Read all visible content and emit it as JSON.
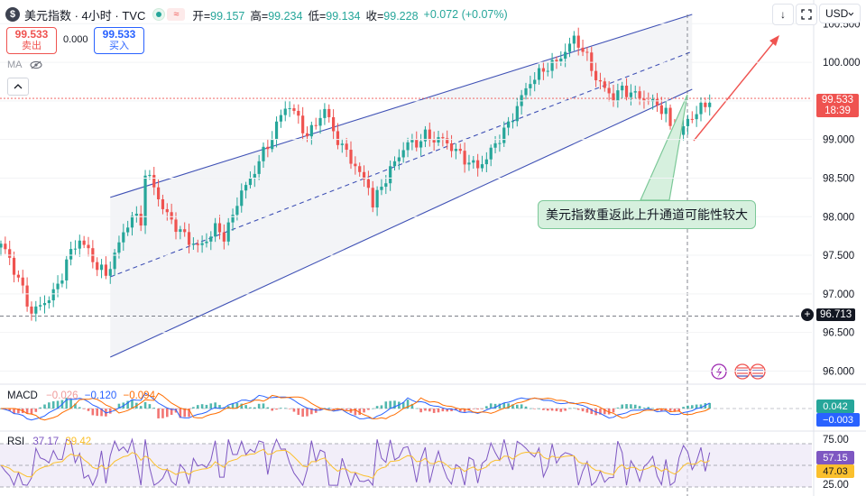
{
  "header": {
    "symbol_badge": "$",
    "symbol_title": "美元指数 · 4小时 · TVC",
    "status_wave": "≈",
    "open_label": "开=",
    "open_value": "99.157",
    "high_label": "高=",
    "high_value": "99.234",
    "low_label": "低=",
    "low_value": "99.134",
    "close_label": "收=",
    "close_value": "99.228",
    "change": "+0.072 (+0.07%)"
  },
  "trade": {
    "sell_price": "99.533",
    "sell_label": "卖出",
    "spread": "0.000",
    "buy_price": "99.533",
    "buy_label": "买入"
  },
  "indicator_ma": "MA",
  "toolbar": {
    "down_arrow": "↓",
    "currency": "USD"
  },
  "annotation": "美元指数重返此上升通道可能性较大",
  "last_price": {
    "value": "99.533",
    "countdown": "18:39"
  },
  "crosshair_price": "96.713",
  "macd": {
    "name": "MACD",
    "v1": "−0.026",
    "v2": "−0.120",
    "v3": "−0.094",
    "label_up": "0.042",
    "label_down": "−0.003"
  },
  "rsi": {
    "name": "RSI",
    "v1": "37.17",
    "v2": "39.42",
    "label_a": "57.15",
    "label_b": "47.03",
    "ticks": [
      "75.00",
      "25.00"
    ]
  },
  "colors": {
    "up": "#26a69a",
    "down": "#ef5350",
    "channel": "#3f51b5",
    "last_price": "#ef5350",
    "macd_line": "#2962ff",
    "signal_line": "#ff6d00",
    "rsi_line": "#7e57c2",
    "rsi_ma": "#fbc02d"
  },
  "chart_data": {
    "type": "candlestick",
    "instrument": "美元指数",
    "timeframe": "4小时",
    "source": "TVC",
    "y_ticks": [
      "100.500",
      "100.000",
      "99.500",
      "99.000",
      "98.500",
      "98.000",
      "97.500",
      "97.000",
      "96.500",
      "96.000"
    ],
    "ylim": [
      95.9,
      100.62
    ],
    "anchors": [
      [
        0,
        97.65
      ],
      [
        2,
        97.45
      ],
      [
        5,
        97.05
      ],
      [
        7,
        96.75
      ],
      [
        9,
        96.85
      ],
      [
        12,
        97.0
      ],
      [
        14,
        97.25
      ],
      [
        16,
        97.55
      ],
      [
        18,
        97.7
      ],
      [
        20,
        97.55
      ],
      [
        22,
        97.35
      ],
      [
        24,
        97.25
      ],
      [
        26,
        97.5
      ],
      [
        28,
        97.8
      ],
      [
        30,
        98.0
      ],
      [
        32,
        97.95
      ],
      [
        33,
        98.55
      ],
      [
        35,
        98.4
      ],
      [
        37,
        98.1
      ],
      [
        39,
        97.95
      ],
      [
        41,
        97.8
      ],
      [
        43,
        97.7
      ],
      [
        45,
        97.6
      ],
      [
        47,
        97.7
      ],
      [
        49,
        97.85
      ],
      [
        51,
        97.75
      ],
      [
        53,
        98.0
      ],
      [
        55,
        98.35
      ],
      [
        57,
        98.45
      ],
      [
        59,
        98.75
      ],
      [
        61,
        98.9
      ],
      [
        63,
        99.2
      ],
      [
        65,
        99.4
      ],
      [
        66,
        99.45
      ],
      [
        68,
        99.25
      ],
      [
        70,
        99.05
      ],
      [
        72,
        99.2
      ],
      [
        74,
        99.4
      ],
      [
        76,
        99.1
      ],
      [
        78,
        98.9
      ],
      [
        80,
        98.75
      ],
      [
        82,
        98.55
      ],
      [
        84,
        98.4
      ],
      [
        85,
        98.15
      ],
      [
        87,
        98.4
      ],
      [
        89,
        98.6
      ],
      [
        91,
        98.8
      ],
      [
        93,
        98.95
      ],
      [
        95,
        98.95
      ],
      [
        97,
        99.05
      ],
      [
        99,
        99.0
      ],
      [
        101,
        99.0
      ],
      [
        103,
        98.9
      ],
      [
        105,
        98.8
      ],
      [
        107,
        98.7
      ],
      [
        109,
        98.65
      ],
      [
        111,
        98.75
      ],
      [
        113,
        98.95
      ],
      [
        115,
        99.1
      ],
      [
        117,
        99.3
      ],
      [
        119,
        99.55
      ],
      [
        121,
        99.75
      ],
      [
        123,
        99.85
      ],
      [
        125,
        99.95
      ],
      [
        127,
        100.0
      ],
      [
        129,
        100.15
      ],
      [
        131,
        100.3
      ],
      [
        132,
        100.25
      ],
      [
        134,
        100.05
      ],
      [
        136,
        99.8
      ],
      [
        138,
        99.65
      ],
      [
        140,
        99.55
      ],
      [
        142,
        99.65
      ],
      [
        144,
        99.6
      ],
      [
        146,
        99.55
      ],
      [
        148,
        99.5
      ],
      [
        150,
        99.45
      ],
      [
        152,
        99.35
      ],
      [
        153,
        99.15
      ],
      [
        155,
        99.05
      ],
      [
        157,
        99.25
      ],
      [
        159,
        99.35
      ],
      [
        161,
        99.45
      ],
      [
        162,
        99.53
      ]
    ],
    "channel": {
      "upper": [
        [
          25,
          98.25
        ],
        [
          158,
          100.62
        ]
      ],
      "lower": [
        [
          25,
          96.18
        ],
        [
          158,
          99.65
        ]
      ],
      "middle": [
        [
          25,
          97.22
        ],
        [
          158,
          100.14
        ]
      ]
    }
  }
}
